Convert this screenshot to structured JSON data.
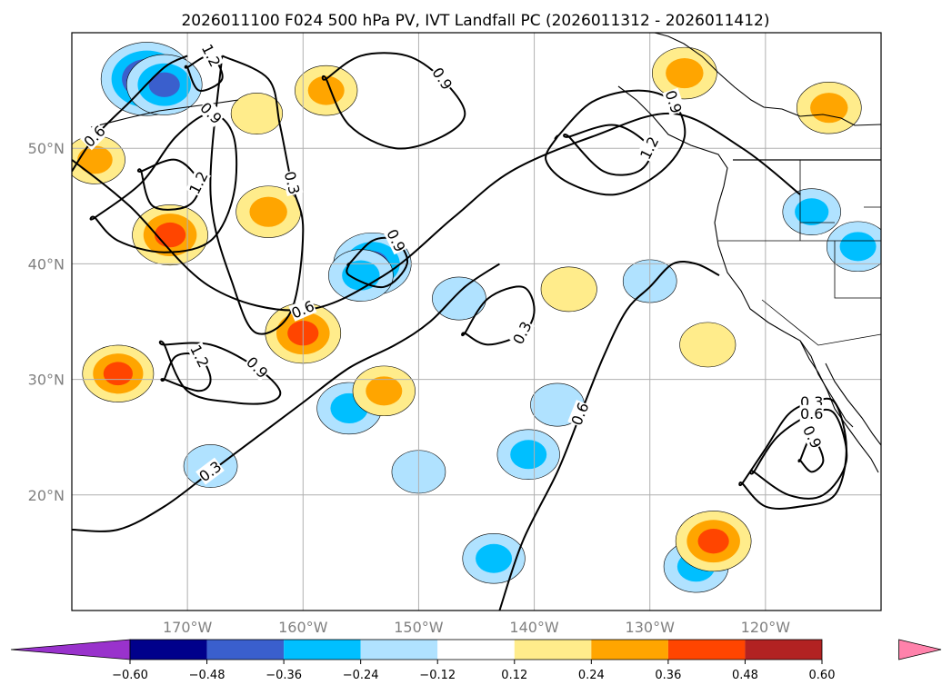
{
  "chart_data": {
    "type": "contour-map",
    "title": "2026011100 F024 500 hPa PV, IVT Landfall PC (2026011312 - 2026011412)",
    "map": {
      "lon_range": [
        -180,
        -110
      ],
      "lat_range": [
        10,
        60
      ],
      "lat_ticks": [
        {
          "value": 20,
          "label": "20°N"
        },
        {
          "value": 30,
          "label": "30°N"
        },
        {
          "value": 40,
          "label": "40°N"
        },
        {
          "value": 50,
          "label": "50°N"
        }
      ],
      "lon_ticks": [
        {
          "value": -170,
          "label": "170°W"
        },
        {
          "value": -160,
          "label": "160°W"
        },
        {
          "value": -150,
          "label": "150°W"
        },
        {
          "value": -140,
          "label": "140°W"
        },
        {
          "value": -130,
          "label": "130°W"
        },
        {
          "value": -120,
          "label": "120°W"
        }
      ],
      "grid": true
    },
    "colorbar": {
      "ticks": [
        "−0.60",
        "−0.48",
        "−0.36",
        "−0.24",
        "−0.12",
        "0.12",
        "0.24",
        "0.36",
        "0.48",
        "0.60"
      ],
      "colors": [
        "#9932cc",
        "#00008b",
        "#3a5fcd",
        "#00bfff",
        "#b0e2ff",
        "#ffffff",
        "#ffec8b",
        "#ffa500",
        "#ff4500",
        "#b22222",
        "#ff82ab"
      ],
      "extend": "both"
    },
    "shading": [
      {
        "lon": -173.5,
        "lat": 56.0,
        "value": -0.55
      },
      {
        "lon": -172.0,
        "lat": 55.5,
        "value": -0.4
      },
      {
        "lon": -154.0,
        "lat": 40.0,
        "value": -0.42
      },
      {
        "lon": -155.0,
        "lat": 39.0,
        "value": -0.3
      },
      {
        "lon": -143.5,
        "lat": 14.5,
        "value": -0.28
      },
      {
        "lon": -140.5,
        "lat": 23.5,
        "value": -0.28
      },
      {
        "lon": -138.0,
        "lat": 27.8,
        "value": -0.2
      },
      {
        "lon": -146.5,
        "lat": 37.0,
        "value": -0.2
      },
      {
        "lon": -130.0,
        "lat": 38.5,
        "value": -0.2
      },
      {
        "lon": -156.0,
        "lat": 27.5,
        "value": -0.3
      },
      {
        "lon": -150.0,
        "lat": 22.0,
        "value": -0.2
      },
      {
        "lon": -168.0,
        "lat": 22.5,
        "value": -0.2
      },
      {
        "lon": -126.0,
        "lat": 13.8,
        "value": -0.3
      },
      {
        "lon": -116.0,
        "lat": 44.5,
        "value": -0.24
      },
      {
        "lon": -112.0,
        "lat": 41.5,
        "value": -0.28
      },
      {
        "lon": -171.5,
        "lat": 42.5,
        "value": 0.4
      },
      {
        "lon": -176.0,
        "lat": 30.5,
        "value": 0.36
      },
      {
        "lon": -160.0,
        "lat": 34.0,
        "value": 0.4
      },
      {
        "lon": -163.0,
        "lat": 44.5,
        "value": 0.3
      },
      {
        "lon": -124.5,
        "lat": 16.0,
        "value": 0.4
      },
      {
        "lon": -127.0,
        "lat": 56.5,
        "value": 0.3
      },
      {
        "lon": -114.5,
        "lat": 53.5,
        "value": 0.3
      },
      {
        "lon": -158.0,
        "lat": 55.0,
        "value": 0.28
      },
      {
        "lon": -153.0,
        "lat": 29.0,
        "value": 0.28
      },
      {
        "lon": -178.0,
        "lat": 49.0,
        "value": 0.26
      },
      {
        "lon": -164.0,
        "lat": 53.0,
        "value": 0.18
      },
      {
        "lon": -137.0,
        "lat": 37.8,
        "value": 0.22
      },
      {
        "lon": -125.0,
        "lat": 33.0,
        "value": 0.22
      }
    ],
    "contours": [
      {
        "level": "0.3",
        "x": [
          -167,
          -163,
          -162,
          -161,
          -160,
          -161,
          -164,
          -166,
          -168,
          -167
        ],
        "y": [
          58,
          56,
          52,
          47,
          43,
          36,
          34,
          38,
          46,
          58
        ],
        "closed": false
      },
      {
        "level": "0.3",
        "x": [
          -180,
          -176,
          -172,
          -168,
          -164,
          -160,
          -156,
          -152,
          -149,
          -146,
          -143
        ],
        "y": [
          17,
          17,
          19,
          22,
          25,
          28,
          31,
          33,
          35,
          38,
          40
        ],
        "closed": false
      },
      {
        "level": "0.3",
        "x": [
          -146,
          -144,
          -141,
          -140,
          -141,
          -144,
          -146
        ],
        "y": [
          34,
          33,
          34,
          36,
          38,
          37,
          34
        ],
        "closed": true
      },
      {
        "level": "0.3",
        "x": [
          -122,
          -120,
          -118,
          -116,
          -114,
          -113,
          -114,
          -117,
          -120,
          -122
        ],
        "y": [
          21,
          24,
          27,
          28,
          28,
          24,
          20,
          19,
          19,
          21
        ],
        "closed": true
      },
      {
        "level": "0.6",
        "x": [
          -180,
          -178,
          -175,
          -172,
          -170
        ],
        "y": [
          48,
          51,
          54,
          57,
          58
        ],
        "closed": false
      },
      {
        "level": "0.6",
        "x": [
          -180,
          -175,
          -168,
          -160,
          -153,
          -147,
          -142,
          -135,
          -128,
          -122,
          -117
        ],
        "y": [
          49,
          45,
          38,
          36,
          39,
          44,
          48,
          51,
          53,
          50,
          46
        ],
        "closed": false
      },
      {
        "level": "0.6",
        "x": [
          -143,
          -141,
          -138,
          -136,
          -134,
          -132,
          -130,
          -128,
          -126,
          -124
        ],
        "y": [
          10,
          16,
          22,
          27,
          32,
          36,
          38,
          40,
          40,
          39
        ],
        "closed": false
      },
      {
        "level": "0.6",
        "x": [
          -121,
          -119,
          -116,
          -114,
          -113,
          -115,
          -118,
          -121
        ],
        "y": [
          22,
          25,
          27,
          27,
          23,
          20,
          20,
          22
        ],
        "closed": true
      },
      {
        "level": "0.9",
        "x": [
          -158,
          -155,
          -151,
          -148,
          -146,
          -148,
          -152,
          -156,
          -158
        ],
        "y": [
          56,
          58,
          58,
          56,
          53,
          51,
          50,
          52,
          56
        ],
        "closed": true
      },
      {
        "level": "0.9",
        "x": [
          -138,
          -135,
          -131,
          -128,
          -127,
          -129,
          -133,
          -137,
          -139,
          -138
        ],
        "y": [
          51,
          54,
          55,
          54,
          51,
          48,
          46,
          47,
          49,
          51
        ],
        "closed": true
      },
      {
        "level": "0.9",
        "x": [
          -156,
          -154,
          -152,
          -151,
          -153,
          -156,
          -156
        ],
        "y": [
          40,
          42,
          42,
          40,
          38,
          39,
          40
        ],
        "closed": true
      },
      {
        "level": "0.9",
        "x": [
          -172,
          -168,
          -164,
          -162,
          -163,
          -166,
          -170,
          -172
        ],
        "y": [
          33,
          33,
          31,
          29,
          28,
          28,
          29,
          33
        ],
        "closed": true
      },
      {
        "level": "0.9",
        "x": [
          -178,
          -174,
          -171,
          -168,
          -166,
          -166,
          -168,
          -172,
          -176,
          -178
        ],
        "y": [
          44,
          47,
          51,
          53,
          51,
          46,
          42,
          41,
          42,
          44
        ],
        "closed": true
      },
      {
        "level": "0.9",
        "x": [
          -117,
          -116,
          -115,
          -116,
          -117
        ],
        "y": [
          23,
          25,
          23,
          22,
          23
        ],
        "closed": true
      },
      {
        "level": "1.2",
        "x": [
          -172,
          -171,
          -169,
          -168,
          -169,
          -172
        ],
        "y": [
          30,
          32,
          32,
          30,
          29,
          30
        ],
        "closed": true
      },
      {
        "level": "1.2",
        "x": [
          -174,
          -171,
          -169,
          -170,
          -173,
          -174
        ],
        "y": [
          48,
          49,
          47,
          45,
          45,
          48
        ],
        "closed": true
      },
      {
        "level": "1.2",
        "x": [
          -137,
          -133,
          -130,
          -131,
          -134,
          -137
        ],
        "y": [
          51,
          52,
          50,
          48,
          48,
          51
        ],
        "closed": true
      },
      {
        "level": "1.2",
        "x": [
          -170,
          -168,
          -167,
          -169,
          -170
        ],
        "y": [
          57,
          58,
          56,
          55,
          57
        ],
        "closed": true
      }
    ]
  }
}
